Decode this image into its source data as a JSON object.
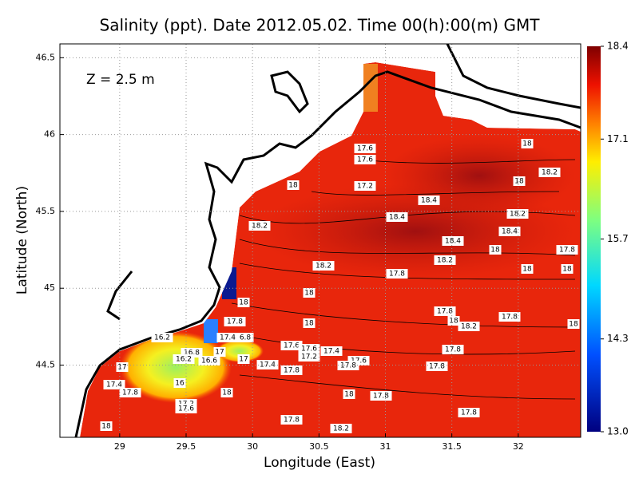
{
  "chart_data": {
    "type": "contour",
    "title": "Salinity (ppt). Date 2012.05.02. Time 00(h):00(m) GMT",
    "annotation": "Z = 2.5 m",
    "xlabel": "Longitude (East)",
    "ylabel": "Latitude (North)",
    "xlim": [
      28.55,
      32.47
    ],
    "ylim": [
      44.03,
      46.59
    ],
    "xticks": [
      29,
      29.5,
      30,
      30.5,
      31,
      31.5,
      32
    ],
    "yticks": [
      44.5,
      45,
      45.5,
      46,
      46.5
    ],
    "grid": true,
    "clim": [
      13,
      18.4
    ],
    "cticks": [
      {
        "value": 13,
        "label": "13.0"
      },
      14.3,
      15.7,
      17.1,
      18.4
    ],
    "contour_labels": [
      "17.6",
      "17.6",
      "18",
      "17.2",
      "18.4",
      "18.4",
      "18",
      "18.2",
      "18",
      "18.2",
      "18.4",
      "18.4",
      "18.2",
      "18.2",
      "18",
      "17.8",
      "18",
      "18",
      "18.2",
      "17.8",
      "18",
      "18",
      "17.8",
      "18",
      "17.8",
      "18",
      "18.2",
      "17.8",
      "18",
      "16.2",
      "17.4",
      "6.8",
      "17",
      "17.6",
      "17.6",
      "17.4",
      "17.6",
      "17.8",
      "17",
      "17.4",
      "17.8",
      "17.8",
      "17",
      "17.4",
      "17.8",
      "16",
      "17.8",
      "18",
      "18",
      "17.8",
      "17.2",
      "17.6",
      "17.8",
      "17.8",
      "18.2",
      "18",
      "16.8",
      "16.2",
      "16.6",
      "17.2"
    ]
  }
}
